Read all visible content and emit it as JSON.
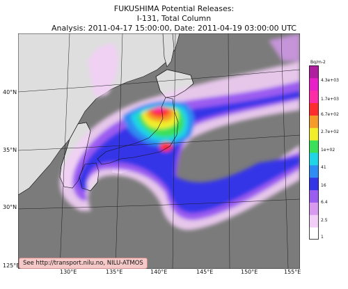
{
  "title": {
    "line1": "FUKUSHIMA Potential Releases:",
    "line2": "I-131, Total Column",
    "line3": "Analysis: 2011-04-17  15:00:00, Date: 2011-04-19  03:00:00 UTC"
  },
  "axes": {
    "lat_labels": [
      "40°N",
      "35°N",
      "30°N",
      "125°E"
    ],
    "lon_labels": [
      "130°E",
      "135°E",
      "140°E",
      "145°E",
      "150°E",
      "155°E"
    ]
  },
  "colorbar": {
    "unit": "Bq/m-2",
    "ticks": [
      "4.3e+03",
      "1.7e+03",
      "6.7e+02",
      "2.7e+02",
      "1e+02",
      "41",
      "16",
      "6.4",
      "2.5",
      "1"
    ],
    "colors": [
      "#ffffff",
      "#f2cff6",
      "#d79af0",
      "#9b5cf0",
      "#3535e8",
      "#2e8cf2",
      "#1fd5e6",
      "#3be05a",
      "#f2ef2a",
      "#f59b2a",
      "#ff2e2e",
      "#ff2ca8",
      "#e81ec8",
      "#b01ea0"
    ]
  },
  "colors": {
    "land": "#dedede",
    "ocean": "#7b7b7b",
    "grid": "#1a1a1a"
  },
  "credit": "See http://transport.nilu.no, NILU-ATMOS"
}
